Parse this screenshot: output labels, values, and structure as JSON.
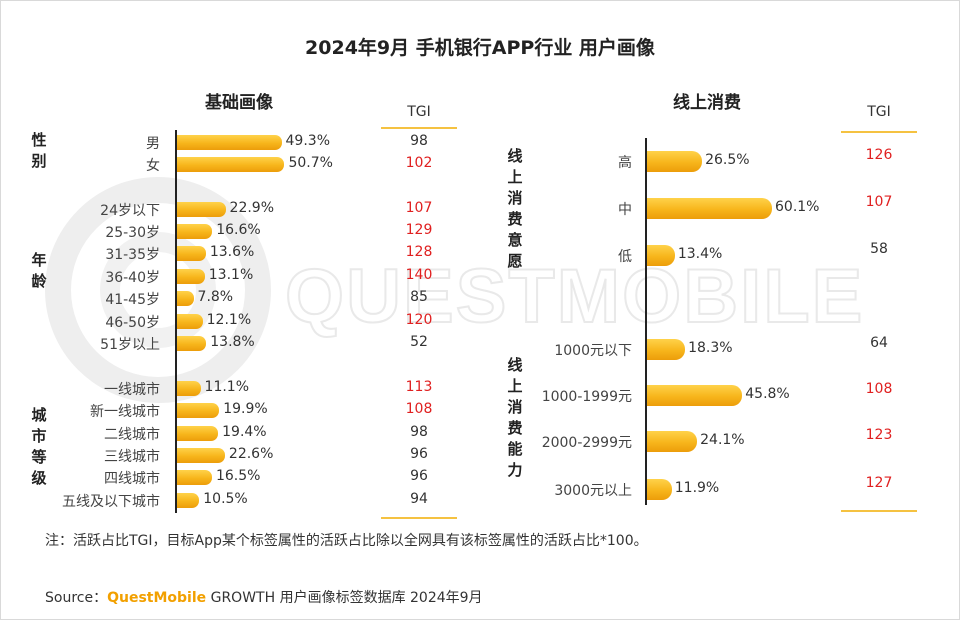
{
  "title": "2024年9月 手机银行APP行业 用户画像",
  "watermark": "QUESTMOBILE",
  "left_panel": {
    "title": "基础画像",
    "tgi_header": "TGI",
    "groups": [
      {
        "label": "性别",
        "rows": [
          {
            "label": "男",
            "pct": "49.3%",
            "tgi": "98",
            "highlight": false
          },
          {
            "label": "女",
            "pct": "50.7%",
            "tgi": "102",
            "highlight": true
          }
        ]
      },
      {
        "label": "年龄",
        "rows": [
          {
            "label": "24岁以下",
            "pct": "22.9%",
            "tgi": "107",
            "highlight": true
          },
          {
            "label": "25-30岁",
            "pct": "16.6%",
            "tgi": "129",
            "highlight": true
          },
          {
            "label": "31-35岁",
            "pct": "13.6%",
            "tgi": "128",
            "highlight": true
          },
          {
            "label": "36-40岁",
            "pct": "13.1%",
            "tgi": "140",
            "highlight": true
          },
          {
            "label": "41-45岁",
            "pct": "7.8%",
            "tgi": "85",
            "highlight": false
          },
          {
            "label": "46-50岁",
            "pct": "12.1%",
            "tgi": "120",
            "highlight": true
          },
          {
            "label": "51岁以上",
            "pct": "13.8%",
            "tgi": "52",
            "highlight": false
          }
        ]
      },
      {
        "label": "城市等级",
        "rows": [
          {
            "label": "一线城市",
            "pct": "11.1%",
            "tgi": "113",
            "highlight": true
          },
          {
            "label": "新一线城市",
            "pct": "19.9%",
            "tgi": "108",
            "highlight": true
          },
          {
            "label": "二线城市",
            "pct": "19.4%",
            "tgi": "98",
            "highlight": false
          },
          {
            "label": "三线城市",
            "pct": "22.6%",
            "tgi": "96",
            "highlight": false
          },
          {
            "label": "四线城市",
            "pct": "16.5%",
            "tgi": "96",
            "highlight": false
          },
          {
            "label": "五线及以下城市",
            "pct": "10.5%",
            "tgi": "94",
            "highlight": false
          }
        ]
      }
    ]
  },
  "right_panel": {
    "title": "线上消费",
    "tgi_header": "TGI",
    "groups": [
      {
        "label": "线上消费意愿",
        "rows": [
          {
            "label": "高",
            "pct": "26.5%",
            "tgi": "126",
            "highlight": true
          },
          {
            "label": "中",
            "pct": "60.1%",
            "tgi": "107",
            "highlight": true
          },
          {
            "label": "低",
            "pct": "13.4%",
            "tgi": "58",
            "highlight": false
          }
        ]
      },
      {
        "label": "线上消费能力",
        "rows": [
          {
            "label": "1000元以下",
            "pct": "18.3%",
            "tgi": "64",
            "highlight": false
          },
          {
            "label": "1000-1999元",
            "pct": "45.8%",
            "tgi": "108",
            "highlight": true
          },
          {
            "label": "2000-2999元",
            "pct": "24.1%",
            "tgi": "123",
            "highlight": true
          },
          {
            "label": "3000元以上",
            "pct": "11.9%",
            "tgi": "127",
            "highlight": true
          }
        ]
      }
    ]
  },
  "chart_data": [
    {
      "type": "bar",
      "title": "基础画像",
      "categories": [
        "男",
        "女",
        "24岁以下",
        "25-30岁",
        "31-35岁",
        "36-40岁",
        "41-45岁",
        "46-50岁",
        "51岁以上",
        "一线城市",
        "新一线城市",
        "二线城市",
        "三线城市",
        "四线城市",
        "五线及以下城市"
      ],
      "series": [
        {
          "name": "",
          "values": [
            49.3,
            50.7,
            22.9,
            16.6,
            13.6,
            13.1,
            7.8,
            12.1,
            13.8,
            11.1,
            19.9,
            19.4,
            22.6,
            16.5,
            10.5
          ]
        },
        {
          "name": "TGI",
          "values": [
            98,
            102,
            107,
            129,
            128,
            140,
            85,
            120,
            52,
            113,
            108,
            98,
            96,
            96,
            94
          ]
        }
      ]
    },
    {
      "type": "bar",
      "title": "线上消费",
      "categories": [
        "高",
        "中",
        "低",
        "1000元以下",
        "1000-1999元",
        "2000-2999元",
        "3000元以上"
      ],
      "series": [
        {
          "name": "",
          "values": [
            26.5,
            60.1,
            13.4,
            18.3,
            45.8,
            24.1,
            11.9
          ]
        },
        {
          "name": "TGI",
          "values": [
            126,
            107,
            58,
            64,
            108,
            123,
            127
          ]
        }
      ]
    }
  ],
  "colors": {
    "bar": "#f7b51b",
    "tgi_high": "#e02020",
    "tgi_normal": "#333333",
    "accent_line": "#f5c241",
    "brand": "#f2a000"
  },
  "note": "注：活跃占比TGI，目标App某个标签属性的活跃占比除以全网具有该标签属性的活跃占比*100。",
  "source": {
    "prefix": "Source：",
    "brand": "QuestMobile",
    "text": " GROWTH 用户画像标签数据库 2024年9月"
  }
}
